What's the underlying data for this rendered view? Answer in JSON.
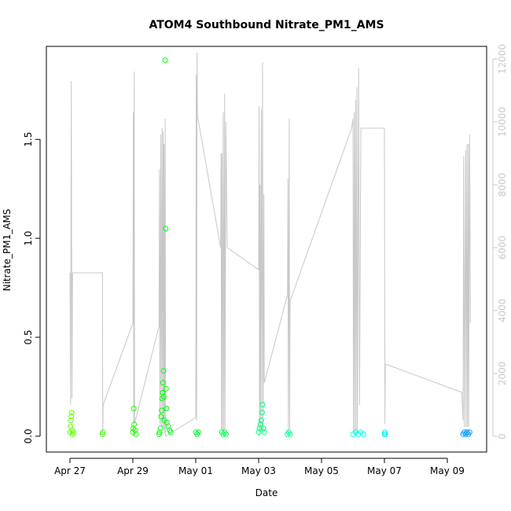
{
  "chart_data": {
    "type": "scatter",
    "title": "ATOM4 Southbound Nitrate_PM1_AMS",
    "xlabel": "Date",
    "ylabel": "Nitrate_PM1_AMS",
    "x_range": [
      "2017-04-26T06:00",
      "2017-05-10T06:00"
    ],
    "ylim": [
      -0.08,
      1.97
    ],
    "y2lim": [
      -500,
      12400
    ],
    "x_ticks": [
      {
        "label": "Apr 27",
        "date": "2017-04-27"
      },
      {
        "label": "Apr 29",
        "date": "2017-04-29"
      },
      {
        "label": "May 01",
        "date": "2017-05-01"
      },
      {
        "label": "May 03",
        "date": "2017-05-03"
      },
      {
        "label": "May 05",
        "date": "2017-05-05"
      },
      {
        "label": "May 07",
        "date": "2017-05-07"
      },
      {
        "label": "May 09",
        "date": "2017-05-09"
      }
    ],
    "y_ticks": [
      "0.0",
      "0.5",
      "1.0",
      "1.5"
    ],
    "y2_ticks": [
      "0",
      "2000",
      "4000",
      "6000",
      "8000",
      "10000",
      "12000"
    ],
    "grid": false,
    "legend": "none",
    "point_style": "open circles colored by time (green to blue)",
    "colors": {
      "early": "#80ff00",
      "mid": "#00ff80",
      "late": "#0090ff",
      "line": "#c8c8c8"
    },
    "series": [
      {
        "role": "points (left axis)",
        "values": [
          [
            "2017-04-27T00:00",
            0.02
          ],
          [
            "2017-04-27T00:20",
            0.05
          ],
          [
            "2017-04-27T00:40",
            0.08
          ],
          [
            "2017-04-27T01:00",
            0.1
          ],
          [
            "2017-04-27T01:20",
            0.12
          ],
          [
            "2017-04-27T01:40",
            0.03
          ],
          [
            "2017-04-27T02:00",
            0.01
          ],
          [
            "2017-04-27T02:40",
            0.02
          ],
          [
            "2017-04-28T00:50",
            0.01
          ],
          [
            "2017-04-28T01:10",
            0.02
          ],
          [
            "2017-04-29T00:00",
            0.02
          ],
          [
            "2017-04-29T00:20",
            0.04
          ],
          [
            "2017-04-29T00:40",
            0.14
          ],
          [
            "2017-04-29T01:00",
            0.06
          ],
          [
            "2017-04-29T01:40",
            0.03
          ],
          [
            "2017-04-29T02:30",
            0.01
          ],
          [
            "2017-04-29T20:00",
            0.01
          ],
          [
            "2017-04-29T20:30",
            0.02
          ],
          [
            "2017-04-29T21:00",
            0.04
          ],
          [
            "2017-04-29T21:30",
            0.1
          ],
          [
            "2017-04-29T22:00",
            0.13
          ],
          [
            "2017-04-29T22:20",
            0.19
          ],
          [
            "2017-04-29T22:40",
            0.22
          ],
          [
            "2017-04-29T23:00",
            0.27
          ],
          [
            "2017-04-29T23:20",
            0.33
          ],
          [
            "2017-04-29T23:40",
            0.2
          ],
          [
            "2017-04-30T00:00",
            0.08
          ],
          [
            "2017-04-30T00:40",
            1.9
          ],
          [
            "2017-04-30T01:00",
            1.05
          ],
          [
            "2017-04-30T01:20",
            0.24
          ],
          [
            "2017-04-30T01:40",
            0.14
          ],
          [
            "2017-04-30T02:00",
            0.07
          ],
          [
            "2017-04-30T03:00",
            0.05
          ],
          [
            "2017-04-30T04:00",
            0.03
          ],
          [
            "2017-04-30T05:00",
            0.02
          ],
          [
            "2017-05-01T00:00",
            0.02
          ],
          [
            "2017-05-01T01:00",
            0.01
          ],
          [
            "2017-05-01T02:00",
            0.02
          ],
          [
            "2017-05-01T20:00",
            0.02
          ],
          [
            "2017-05-01T21:00",
            0.01
          ],
          [
            "2017-05-01T22:00",
            0.02
          ],
          [
            "2017-05-01T23:00",
            0.01
          ],
          [
            "2017-05-03T00:00",
            0.02
          ],
          [
            "2017-05-03T00:40",
            0.04
          ],
          [
            "2017-05-03T01:20",
            0.06
          ],
          [
            "2017-05-03T02:00",
            0.08
          ],
          [
            "2017-05-03T02:40",
            0.12
          ],
          [
            "2017-05-03T03:00",
            0.16
          ],
          [
            "2017-05-03T03:40",
            0.04
          ],
          [
            "2017-05-03T04:20",
            0.02
          ],
          [
            "2017-05-03T22:00",
            0.01
          ],
          [
            "2017-05-03T23:00",
            0.02
          ],
          [
            "2017-05-04T00:00",
            0.01
          ],
          [
            "2017-05-06T00:00",
            0.01
          ],
          [
            "2017-05-06T02:00",
            0.02
          ],
          [
            "2017-05-06T04:00",
            0.01
          ],
          [
            "2017-05-06T06:00",
            0.02
          ],
          [
            "2017-05-06T08:00",
            0.01
          ],
          [
            "2017-05-07T00:00",
            0.01
          ],
          [
            "2017-05-07T00:20",
            0.02
          ],
          [
            "2017-05-07T00:40",
            0.01
          ],
          [
            "2017-05-09T12:00",
            0.01
          ],
          [
            "2017-05-09T13:00",
            0.02
          ],
          [
            "2017-05-09T14:00",
            0.01
          ],
          [
            "2017-05-09T15:00",
            0.02
          ],
          [
            "2017-05-09T16:00",
            0.01
          ],
          [
            "2017-05-09T17:00",
            0.02
          ]
        ]
      },
      {
        "role": "line (right axis)",
        "values": [
          [
            "2017-04-27T00:00",
            5200
          ],
          [
            "2017-04-27T00:30",
            1000
          ],
          [
            "2017-04-27T01:00",
            11300
          ],
          [
            "2017-04-27T01:30",
            1200
          ],
          [
            "2017-04-27T02:00",
            5200
          ],
          [
            "2017-04-28T00:50",
            5200
          ],
          [
            "2017-04-28T01:00",
            0
          ],
          [
            "2017-04-28T01:20",
            1000
          ],
          [
            "2017-04-29T00:00",
            3600
          ],
          [
            "2017-04-29T00:20",
            10300
          ],
          [
            "2017-04-29T00:40",
            0
          ],
          [
            "2017-04-29T01:00",
            11600
          ],
          [
            "2017-04-29T01:20",
            400
          ],
          [
            "2017-04-29T20:00",
            3500
          ],
          [
            "2017-04-29T20:20",
            8500
          ],
          [
            "2017-04-29T20:40",
            400
          ],
          [
            "2017-04-29T21:20",
            9600
          ],
          [
            "2017-04-29T21:40",
            300
          ],
          [
            "2017-04-29T22:20",
            9800
          ],
          [
            "2017-04-29T22:40",
            300
          ],
          [
            "2017-04-29T23:10",
            9700
          ],
          [
            "2017-04-29T23:30",
            200
          ],
          [
            "2017-04-29T23:50",
            9300
          ],
          [
            "2017-04-30T00:10",
            100
          ],
          [
            "2017-04-30T00:40",
            10100
          ],
          [
            "2017-04-30T01:00",
            0
          ],
          [
            "2017-05-01T00:00",
            600
          ],
          [
            "2017-05-01T00:20",
            11500
          ],
          [
            "2017-05-01T00:40",
            500
          ],
          [
            "2017-05-01T01:00",
            12200
          ],
          [
            "2017-05-01T01:20",
            10200
          ],
          [
            "2017-05-01T19:00",
            6000
          ],
          [
            "2017-05-01T19:20",
            9000
          ],
          [
            "2017-05-01T19:40",
            200
          ],
          [
            "2017-05-01T20:00",
            9000
          ],
          [
            "2017-05-01T20:20",
            200
          ],
          [
            "2017-05-01T21:00",
            10300
          ],
          [
            "2017-05-01T21:20",
            200
          ],
          [
            "2017-05-01T22:00",
            10900
          ],
          [
            "2017-05-01T22:20",
            200
          ],
          [
            "2017-05-01T23:00",
            10000
          ],
          [
            "2017-05-02T00:00",
            6000
          ],
          [
            "2017-05-03T00:00",
            5300
          ],
          [
            "2017-05-03T00:20",
            10500
          ],
          [
            "2017-05-03T00:40",
            0
          ],
          [
            "2017-05-03T01:00",
            8000
          ],
          [
            "2017-05-03T01:20",
            200
          ],
          [
            "2017-05-03T02:00",
            10400
          ],
          [
            "2017-05-03T02:20",
            200
          ],
          [
            "2017-05-03T03:00",
            11900
          ],
          [
            "2017-05-03T03:20",
            200
          ],
          [
            "2017-05-03T04:00",
            7700
          ],
          [
            "2017-05-03T04:20",
            1700
          ],
          [
            "2017-05-03T22:00",
            4500
          ],
          [
            "2017-05-03T22:20",
            8200
          ],
          [
            "2017-05-03T22:40",
            100
          ],
          [
            "2017-05-03T23:20",
            10100
          ],
          [
            "2017-05-03T23:40",
            200
          ],
          [
            "2017-05-04T00:00",
            4300
          ],
          [
            "2017-05-05T23:00",
            9800
          ],
          [
            "2017-05-06T00:00",
            10100
          ],
          [
            "2017-05-06T00:20",
            100
          ],
          [
            "2017-05-06T01:00",
            10300
          ],
          [
            "2017-05-06T01:20",
            100
          ],
          [
            "2017-05-06T02:00",
            10700
          ],
          [
            "2017-05-06T02:20",
            100
          ],
          [
            "2017-05-06T03:00",
            11100
          ],
          [
            "2017-05-06T03:20",
            100
          ],
          [
            "2017-05-06T04:20",
            11700
          ],
          [
            "2017-05-06T05:00",
            1000
          ],
          [
            "2017-05-06T06:00",
            9800
          ],
          [
            "2017-05-07T00:00",
            9800
          ],
          [
            "2017-05-07T00:20",
            400
          ],
          [
            "2017-05-07T00:40",
            2300
          ],
          [
            "2017-05-09T11:00",
            1400
          ],
          [
            "2017-05-09T12:00",
            500
          ],
          [
            "2017-05-09T12:30",
            8900
          ],
          [
            "2017-05-09T13:00",
            300
          ],
          [
            "2017-05-09T14:00",
            9100
          ],
          [
            "2017-05-09T14:20",
            300
          ],
          [
            "2017-05-09T15:00",
            9300
          ],
          [
            "2017-05-09T15:20",
            300
          ],
          [
            "2017-05-09T16:00",
            9300
          ],
          [
            "2017-05-09T16:20",
            300
          ],
          [
            "2017-05-09T17:00",
            9600
          ],
          [
            "2017-05-09T17:40",
            3600
          ]
        ]
      }
    ]
  }
}
